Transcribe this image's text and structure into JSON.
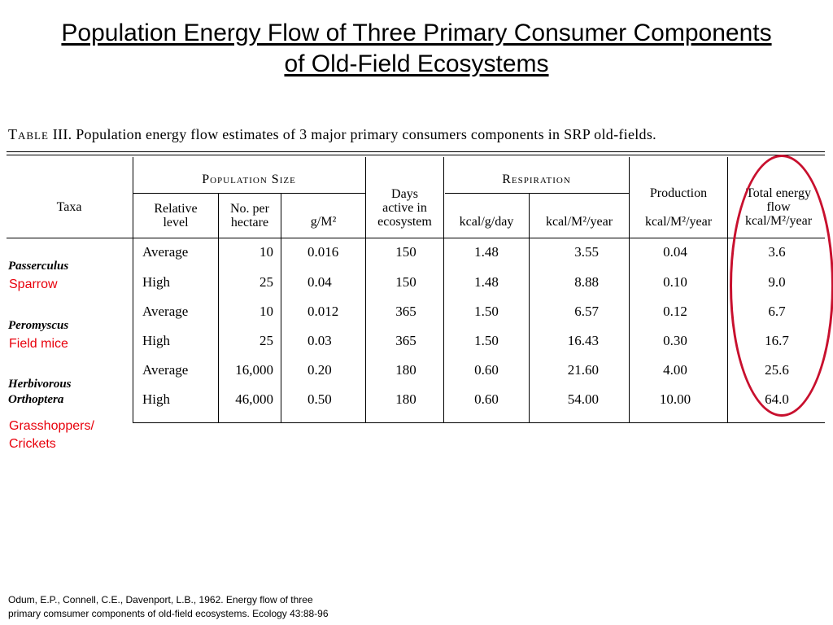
{
  "slide": {
    "title_line1": "Population Energy Flow of Three Primary Consumer Components",
    "title_line2": "of Old-Field Ecosystems"
  },
  "table": {
    "caption_label": "Table",
    "caption_number": "III.",
    "caption_text": "Population energy flow estimates of 3 major primary consumers components in SRP old-fields.",
    "headers": {
      "taxa": "Taxa",
      "population_size": "Population Size",
      "relative_level": [
        "Relative",
        "level"
      ],
      "no_per_hectare": [
        "No. per",
        "hectare"
      ],
      "g_m2": "g/M²",
      "days_active": [
        "Days",
        "active in",
        "ecosystem"
      ],
      "respiration": "Respiration",
      "kcal_g_day": "kcal/g/day",
      "kcal_m2_year": "kcal/M²/year",
      "production": "Production",
      "production_unit": "kcal/M²/year",
      "total_energy_flow": [
        "Total energy",
        "flow",
        "kcal/M²/year"
      ]
    },
    "taxa": [
      {
        "name_line1": "Passerculus",
        "name_line2": "",
        "common_name": [
          "Sparrow"
        ]
      },
      {
        "name_line1": "Peromyscus",
        "name_line2": "",
        "common_name": [
          "Field mice"
        ]
      },
      {
        "name_line1": "Herbivorous",
        "name_line2": "Orthoptera",
        "common_name": [
          "Grasshoppers/",
          "Crickets"
        ]
      }
    ],
    "rows": [
      {
        "level": "Average",
        "per_hectare": "10",
        "g_m2": "0.016",
        "days": "150",
        "kcal_g_day": "1.48",
        "resp_kcal_m2_year": "3.55",
        "production": "0.04",
        "total": "3.6"
      },
      {
        "level": "High",
        "per_hectare": "25",
        "g_m2": "0.04",
        "days": "150",
        "kcal_g_day": "1.48",
        "resp_kcal_m2_year": "8.88",
        "production": "0.10",
        "total": "9.0"
      },
      {
        "level": "Average",
        "per_hectare": "10",
        "g_m2": "0.012",
        "days": "365",
        "kcal_g_day": "1.50",
        "resp_kcal_m2_year": "6.57",
        "production": "0.12",
        "total": "6.7"
      },
      {
        "level": "High",
        "per_hectare": "25",
        "g_m2": "0.03",
        "days": "365",
        "kcal_g_day": "1.50",
        "resp_kcal_m2_year": "16.43",
        "production": "0.30",
        "total": "16.7"
      },
      {
        "level": "Average",
        "per_hectare": "16,000",
        "g_m2": "0.20",
        "days": "180",
        "kcal_g_day": "0.60",
        "resp_kcal_m2_year": "21.60",
        "production": "4.00",
        "total": "25.6"
      },
      {
        "level": "High",
        "per_hectare": "46,000",
        "g_m2": "0.50",
        "days": "180",
        "kcal_g_day": "0.60",
        "resp_kcal_m2_year": "54.00",
        "production": "10.00",
        "total": "64.0"
      }
    ]
  },
  "highlight": {
    "color": "#c8102e",
    "target": "total-energy-flow-column"
  },
  "common_name_color": "#e8000b",
  "citation": {
    "line1": "Odum, E.P., Connell, C.E., Davenport, L.B., 1962. Energy flow of three",
    "line2": "primary comsumer components of old-field ecosystems. Ecology 43:88-96"
  }
}
